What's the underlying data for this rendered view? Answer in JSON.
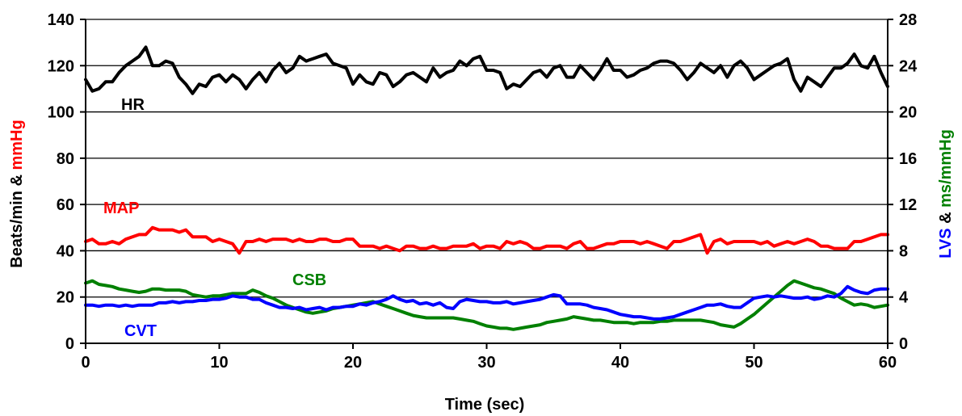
{
  "chart_data": {
    "type": "line",
    "xlabel": "Time (sec)",
    "xlim": [
      0,
      60
    ],
    "x_ticks": [
      "0",
      "10",
      "20",
      "30",
      "40",
      "50",
      "60"
    ],
    "ylim": [
      0,
      140
    ],
    "y_ticks": [
      "0",
      "20",
      "40",
      "60",
      "80",
      "100",
      "120",
      "140"
    ],
    "ylabel_parts": [
      {
        "text": "Beats/min & ",
        "color": "#000000"
      },
      {
        "text": "mmHg",
        "color": "#ff0000"
      }
    ],
    "y2lim": [
      0,
      28
    ],
    "y2_ticks": [
      "0",
      "4",
      "8",
      "12",
      "16",
      "20",
      "24",
      "28"
    ],
    "y2label_parts": [
      {
        "text": "LVS",
        "color": "#0000ff"
      },
      {
        "text": " & ",
        "color": "#000000"
      },
      {
        "text": "ms/mmHg",
        "color": "#008000"
      }
    ],
    "grid": "horizontal",
    "series": [
      {
        "name": "HR",
        "axis": "left",
        "color": "#000000",
        "x": [
          0,
          0.5,
          1,
          1.5,
          2,
          2.5,
          3,
          3.5,
          4,
          4.5,
          5,
          5.5,
          6,
          6.5,
          7,
          7.5,
          8,
          8.5,
          9,
          9.5,
          10,
          10.5,
          11,
          11.5,
          12,
          12.5,
          13,
          13.5,
          14,
          14.5,
          15,
          15.5,
          16,
          16.5,
          17,
          17.5,
          18,
          18.5,
          19,
          19.5,
          20,
          20.5,
          21,
          21.5,
          22,
          22.5,
          23,
          23.5,
          24,
          24.5,
          25,
          25.5,
          26,
          26.5,
          27,
          27.5,
          28,
          28.5,
          29,
          29.5,
          30,
          30.5,
          31,
          31.5,
          32,
          32.5,
          33,
          33.5,
          34,
          34.5,
          35,
          35.5,
          36,
          36.5,
          37,
          37.5,
          38,
          38.5,
          39,
          39.5,
          40,
          40.5,
          41,
          41.5,
          42,
          42.5,
          43,
          43.5,
          44,
          44.5,
          45,
          45.5,
          46,
          46.5,
          47,
          47.5,
          48,
          48.5,
          49,
          49.5,
          50,
          50.5,
          51,
          51.5,
          52,
          52.5,
          53,
          53.5,
          54,
          54.5,
          55,
          55.5,
          56,
          56.5,
          57,
          57.5,
          58,
          58.5,
          59,
          59.5,
          60
        ],
        "y": [
          114,
          109,
          110,
          113,
          113,
          117,
          120,
          122,
          124,
          128,
          120,
          120,
          122,
          121,
          115,
          112,
          108,
          112,
          111,
          115,
          116,
          113,
          116,
          114,
          110,
          114,
          117,
          113,
          118,
          121,
          117,
          119,
          124,
          122,
          123,
          124,
          125,
          121,
          120,
          119,
          112,
          116,
          113,
          112,
          117,
          116,
          111,
          113,
          116,
          117,
          115,
          113,
          119,
          115,
          117,
          118,
          122,
          120,
          123,
          124,
          118,
          118,
          117,
          110,
          112,
          111,
          114,
          117,
          118,
          115,
          119,
          120,
          115,
          115,
          120,
          117,
          114,
          118,
          123,
          118,
          118,
          115,
          116,
          118,
          119,
          121,
          122,
          122,
          121,
          118,
          114,
          117,
          121,
          119,
          117,
          120,
          115,
          120,
          122,
          119,
          114,
          116,
          118,
          120,
          121,
          123,
          114,
          109,
          115,
          113,
          111,
          115,
          119,
          119,
          121,
          125,
          120,
          119,
          124,
          117,
          111
        ],
        "label": "HR"
      },
      {
        "name": "MAP",
        "axis": "left",
        "color": "#ff0000",
        "x": [
          0,
          0.5,
          1,
          1.5,
          2,
          2.5,
          3,
          3.5,
          4,
          4.5,
          5,
          5.5,
          6,
          6.5,
          7,
          7.5,
          8,
          8.5,
          9,
          9.5,
          10,
          10.5,
          11,
          11.5,
          12,
          12.5,
          13,
          13.5,
          14,
          14.5,
          15,
          15.5,
          16,
          16.5,
          17,
          17.5,
          18,
          18.5,
          19,
          19.5,
          20,
          20.5,
          21,
          21.5,
          22,
          22.5,
          23,
          23.5,
          24,
          24.5,
          25,
          25.5,
          26,
          26.5,
          27,
          27.5,
          28,
          28.5,
          29,
          29.5,
          30,
          30.5,
          31,
          31.5,
          32,
          32.5,
          33,
          33.5,
          34,
          34.5,
          35,
          35.5,
          36,
          36.5,
          37,
          37.5,
          38,
          38.5,
          39,
          39.5,
          40,
          40.5,
          41,
          41.5,
          42,
          42.5,
          43,
          43.5,
          44,
          44.5,
          45,
          45.5,
          46,
          46.5,
          47,
          47.5,
          48,
          48.5,
          49,
          49.5,
          50,
          50.5,
          51,
          51.5,
          52,
          52.5,
          53,
          53.5,
          54,
          54.5,
          55,
          55.5,
          56,
          56.5,
          57,
          57.5,
          58,
          58.5,
          59,
          59.5,
          60
        ],
        "y": [
          44,
          45,
          43,
          43,
          44,
          43,
          45,
          46,
          47,
          47,
          50,
          49,
          49,
          49,
          48,
          49,
          46,
          46,
          46,
          44,
          45,
          44,
          43,
          39,
          44,
          44,
          45,
          44,
          45,
          45,
          45,
          44,
          45,
          44,
          44,
          45,
          45,
          44,
          44,
          45,
          45,
          42,
          42,
          42,
          41,
          42,
          41,
          40,
          42,
          42,
          41,
          41,
          42,
          41,
          41,
          42,
          42,
          42,
          43,
          41,
          42,
          42,
          41,
          44,
          43,
          44,
          43,
          41,
          41,
          42,
          42,
          42,
          41,
          43,
          44,
          41,
          41,
          42,
          43,
          43,
          44,
          44,
          44,
          43,
          44,
          43,
          42,
          41,
          44,
          44,
          45,
          46,
          47,
          39,
          44,
          45,
          43,
          44,
          44,
          44,
          44,
          43,
          44,
          42,
          43,
          44,
          43,
          44,
          45,
          44,
          42,
          42,
          41,
          41,
          41,
          44,
          44,
          45,
          46,
          47,
          47
        ],
        "label": "MAP"
      },
      {
        "name": "CSB",
        "axis": "right",
        "color": "#008000",
        "x": [
          0,
          0.5,
          1,
          1.5,
          2,
          2.5,
          3,
          3.5,
          4,
          4.5,
          5,
          5.5,
          6,
          6.5,
          7,
          7.5,
          8,
          8.5,
          9,
          9.5,
          10,
          10.5,
          11,
          11.5,
          12,
          12.5,
          13,
          13.5,
          14,
          14.5,
          15,
          15.5,
          16,
          16.5,
          17,
          17.5,
          18,
          18.5,
          19,
          19.5,
          20,
          20.5,
          21,
          21.5,
          22,
          22.5,
          23,
          23.5,
          24,
          24.5,
          25,
          25.5,
          26,
          26.5,
          27,
          27.5,
          28,
          28.5,
          29,
          29.5,
          30,
          30.5,
          31,
          31.5,
          32,
          32.5,
          33,
          33.5,
          34,
          34.5,
          35,
          35.5,
          36,
          36.5,
          37,
          37.5,
          38,
          38.5,
          39,
          39.5,
          40,
          40.5,
          41,
          41.5,
          42,
          42.5,
          43,
          43.5,
          44,
          44.5,
          45,
          45.5,
          46,
          46.5,
          47,
          47.5,
          48,
          48.5,
          49,
          49.5,
          50,
          50.5,
          51,
          51.5,
          52,
          52.5,
          53,
          53.5,
          54,
          54.5,
          55,
          55.5,
          56,
          56.5,
          57,
          57.5,
          58,
          58.5,
          59,
          59.5,
          60
        ],
        "y": [
          5.2,
          5.4,
          5.1,
          5.0,
          4.9,
          4.7,
          4.6,
          4.5,
          4.4,
          4.5,
          4.7,
          4.7,
          4.6,
          4.6,
          4.6,
          4.5,
          4.2,
          4.1,
          4.0,
          4.1,
          4.1,
          4.2,
          4.3,
          4.3,
          4.3,
          4.6,
          4.4,
          4.1,
          3.9,
          3.6,
          3.3,
          3.1,
          2.9,
          2.7,
          2.6,
          2.7,
          2.8,
          3.0,
          3.1,
          3.2,
          3.3,
          3.4,
          3.5,
          3.6,
          3.4,
          3.2,
          3.0,
          2.8,
          2.6,
          2.4,
          2.3,
          2.2,
          2.2,
          2.2,
          2.2,
          2.2,
          2.1,
          2.0,
          1.9,
          1.7,
          1.5,
          1.4,
          1.3,
          1.3,
          1.2,
          1.3,
          1.4,
          1.5,
          1.6,
          1.8,
          1.9,
          2.0,
          2.1,
          2.3,
          2.2,
          2.1,
          2.0,
          2.0,
          1.9,
          1.8,
          1.8,
          1.8,
          1.7,
          1.8,
          1.8,
          1.8,
          1.9,
          1.9,
          2.0,
          2.0,
          2.0,
          2.0,
          2.0,
          1.9,
          1.8,
          1.6,
          1.5,
          1.4,
          1.7,
          2.1,
          2.5,
          3.0,
          3.5,
          4.0,
          4.5,
          5.0,
          5.4,
          5.2,
          5.0,
          4.8,
          4.7,
          4.5,
          4.3,
          3.9,
          3.6,
          3.3,
          3.4,
          3.3,
          3.1,
          3.2,
          3.3
        ],
        "label": "CSB"
      },
      {
        "name": "CVT",
        "axis": "right",
        "color": "#0000ff",
        "x": [
          0,
          0.5,
          1,
          1.5,
          2,
          2.5,
          3,
          3.5,
          4,
          4.5,
          5,
          5.5,
          6,
          6.5,
          7,
          7.5,
          8,
          8.5,
          9,
          9.5,
          10,
          10.5,
          11,
          11.5,
          12,
          12.5,
          13,
          13.5,
          14,
          14.5,
          15,
          15.5,
          16,
          16.5,
          17,
          17.5,
          18,
          18.5,
          19,
          19.5,
          20,
          20.5,
          21,
          21.5,
          22,
          22.5,
          23,
          23.5,
          24,
          24.5,
          25,
          25.5,
          26,
          26.5,
          27,
          27.5,
          28,
          28.5,
          29,
          29.5,
          30,
          30.5,
          31,
          31.5,
          32,
          32.5,
          33,
          33.5,
          34,
          34.5,
          35,
          35.5,
          36,
          36.5,
          37,
          37.5,
          38,
          38.5,
          39,
          39.5,
          40,
          40.5,
          41,
          41.5,
          42,
          42.5,
          43,
          43.5,
          44,
          44.5,
          45,
          45.5,
          46,
          46.5,
          47,
          47.5,
          48,
          48.5,
          49,
          49.5,
          50,
          50.5,
          51,
          51.5,
          52,
          52.5,
          53,
          53.5,
          54,
          54.5,
          55,
          55.5,
          56,
          56.5,
          57,
          57.5,
          58,
          58.5,
          59,
          59.5,
          60
        ],
        "y": [
          3.3,
          3.3,
          3.2,
          3.3,
          3.3,
          3.2,
          3.3,
          3.2,
          3.3,
          3.3,
          3.3,
          3.5,
          3.5,
          3.6,
          3.5,
          3.6,
          3.6,
          3.7,
          3.7,
          3.8,
          3.8,
          3.9,
          4.1,
          4.0,
          4.0,
          3.8,
          3.8,
          3.5,
          3.3,
          3.1,
          3.1,
          3.0,
          3.1,
          2.9,
          3.0,
          3.1,
          2.9,
          3.1,
          3.1,
          3.2,
          3.2,
          3.4,
          3.3,
          3.5,
          3.6,
          3.8,
          4.1,
          3.8,
          3.6,
          3.7,
          3.4,
          3.5,
          3.3,
          3.5,
          3.1,
          3.0,
          3.6,
          3.8,
          3.7,
          3.6,
          3.6,
          3.5,
          3.5,
          3.6,
          3.4,
          3.5,
          3.6,
          3.7,
          3.8,
          4.0,
          4.2,
          4.1,
          3.4,
          3.4,
          3.4,
          3.3,
          3.1,
          3.0,
          2.9,
          2.7,
          2.5,
          2.4,
          2.3,
          2.3,
          2.2,
          2.1,
          2.1,
          2.2,
          2.3,
          2.5,
          2.7,
          2.9,
          3.1,
          3.3,
          3.3,
          3.4,
          3.2,
          3.1,
          3.1,
          3.5,
          3.9,
          4.0,
          4.1,
          4.0,
          4.1,
          4.0,
          3.9,
          3.9,
          4.0,
          3.8,
          3.9,
          4.1,
          4.0,
          4.3,
          4.9,
          4.6,
          4.4,
          4.3,
          4.6,
          4.7,
          4.7
        ],
        "label": "CVT"
      }
    ]
  }
}
